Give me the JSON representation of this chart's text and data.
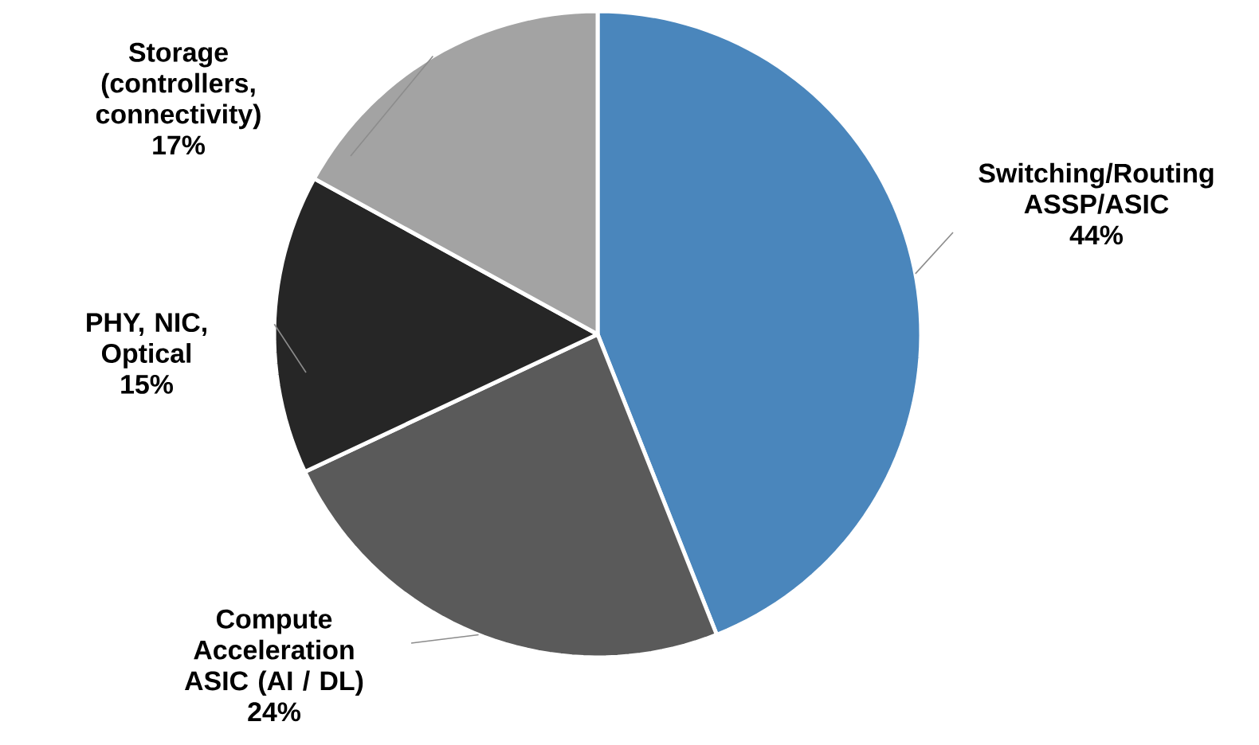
{
  "chart_data": {
    "type": "pie",
    "categories": [
      "Switching/Routing ASSP/ASIC",
      "Compute Acceleration ASIC (AI / DL)",
      "PHY, NIC, Optical",
      "Storage (controllers, connectivity)"
    ],
    "values": [
      44,
      24,
      15,
      17
    ],
    "value_labels": [
      "44%",
      "24%",
      "15%",
      "17%"
    ],
    "colors": [
      "#4a86bc",
      "#5a5a5a",
      "#262626",
      "#a3a3a3"
    ]
  }
}
